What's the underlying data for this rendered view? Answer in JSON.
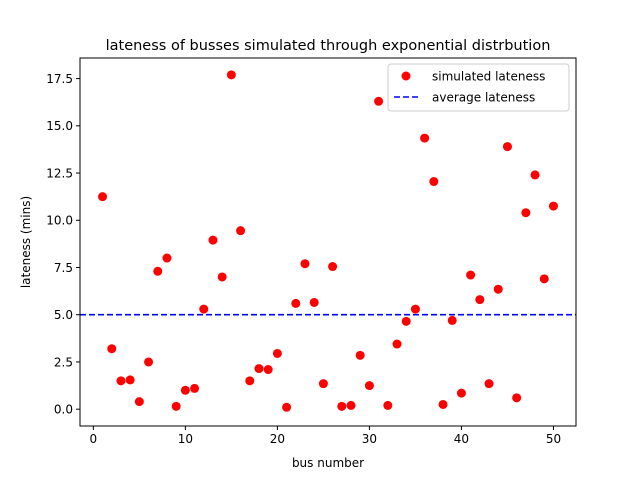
{
  "chart_data": {
    "type": "scatter",
    "title": "lateness of busses simulated through exponential distrbution",
    "xlabel": "bus number",
    "ylabel": "lateness (mins)",
    "xlim": [
      -1.45,
      52.45
    ],
    "ylim": [
      -0.89,
      18.59
    ],
    "xticks": [
      0,
      10,
      20,
      30,
      40,
      50
    ],
    "xtick_labels": [
      "0",
      "10",
      "20",
      "30",
      "40",
      "50"
    ],
    "yticks": [
      0,
      2.5,
      5,
      7.5,
      10,
      12.5,
      15,
      17.5
    ],
    "ytick_labels": [
      "0.0",
      "2.5",
      "5.0",
      "7.5",
      "10.0",
      "12.5",
      "15.0",
      "17.5"
    ],
    "grid": false,
    "legend_position": "top-right",
    "series": [
      {
        "name": "simulated lateness",
        "kind": "scatter",
        "color": "#ff0000",
        "x": [
          1,
          2,
          3,
          4,
          5,
          6,
          7,
          8,
          9,
          10,
          11,
          12,
          13,
          14,
          15,
          16,
          17,
          18,
          19,
          20,
          21,
          22,
          23,
          24,
          25,
          26,
          27,
          28,
          29,
          30,
          31,
          32,
          33,
          34,
          35,
          36,
          37,
          38,
          39,
          40,
          41,
          42,
          43,
          44,
          45,
          46,
          47,
          48,
          49,
          50
        ],
        "y": [
          11.25,
          3.2,
          1.5,
          1.55,
          0.4,
          2.5,
          7.3,
          8.0,
          0.15,
          1.0,
          1.1,
          5.3,
          8.95,
          7.0,
          17.7,
          9.45,
          1.5,
          2.15,
          2.1,
          2.95,
          0.1,
          5.6,
          7.7,
          5.65,
          1.35,
          7.55,
          0.15,
          0.2,
          2.85,
          1.25,
          16.3,
          0.2,
          3.45,
          4.65,
          5.3,
          14.35,
          12.05,
          0.25,
          4.7,
          0.85,
          7.1,
          5.8,
          1.35,
          6.35,
          13.9,
          0.6,
          10.4,
          12.4,
          6.9,
          10.75
        ]
      },
      {
        "name": "average lateness",
        "kind": "hline",
        "color": "#0000ff",
        "y": 5.0
      }
    ]
  }
}
